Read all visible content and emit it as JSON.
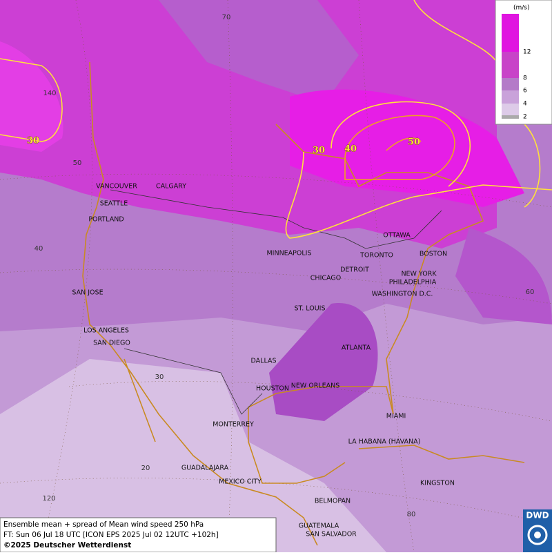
{
  "legend": {
    "unit": "(m/s)",
    "levels": [
      "12",
      "8",
      "6",
      "4",
      "2"
    ]
  },
  "cities": [
    "VANCOUVER",
    "CALGARY",
    "SEATTLE",
    "PORTLAND",
    "MINNEAPOLIS",
    "TORONTO",
    "OTTAWA",
    "DETROIT",
    "CHICAGO",
    "BOSTON",
    "NEW YORK",
    "PHILADELPHIA",
    "WASHINGTON D.C.",
    "SAN JOSE",
    "ST. LOUIS",
    "LOS ANGELES",
    "SAN DIEGO",
    "ATLANTA",
    "DALLAS",
    "HOUSTON",
    "NEW ORLEANS",
    "MIAMI",
    "MONTERREY",
    "LA HABANA (HAVANA)",
    "GUADALAJARA",
    "MEXICO CITY",
    "KINGSTON",
    "BELMOPAN",
    "GUATEMALA",
    "SAN SALVADOR"
  ],
  "graticule_labels": [
    "70",
    "140",
    "50",
    "40",
    "30",
    "20",
    "120",
    "60",
    "80"
  ],
  "contour_labels": [
    "30",
    "30",
    "40",
    "50"
  ],
  "footer": {
    "line1": "Ensemble mean + spread of Mean wind speed 250 hPa",
    "line2": "FT: Sun 06 Jul 18 UTC [ICON EPS 2025 Jul 02 12UTC +102h]",
    "copyright": "©2025 Deutscher Wetterdienst"
  },
  "logo": "DWD"
}
